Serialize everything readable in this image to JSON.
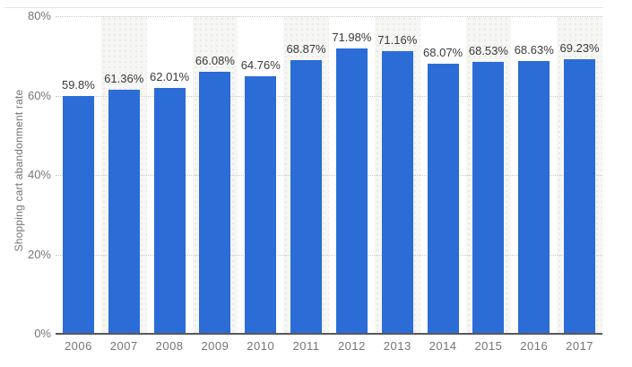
{
  "chart_data": {
    "type": "bar",
    "title": "",
    "categories": [
      "2006",
      "2007",
      "2008",
      "2009",
      "2010",
      "2011",
      "2012",
      "2013",
      "2014",
      "2015",
      "2016",
      "2017"
    ],
    "values": [
      59.8,
      61.36,
      62.01,
      66.08,
      64.76,
      68.87,
      71.98,
      71.16,
      68.07,
      68.53,
      68.63,
      69.23
    ],
    "value_labels": [
      "59.8%",
      "61.36%",
      "62.01%",
      "66.08%",
      "64.76%",
      "68.87%",
      "71.98%",
      "71.16%",
      "68.07%",
      "68.53%",
      "68.63%",
      "69.23%"
    ],
    "xlabel": "",
    "ylabel": "Shopping cart abandonment rate",
    "ylim": [
      0,
      80
    ],
    "yticks": [
      "0%",
      "20%",
      "40%",
      "60%",
      "80%"
    ],
    "ytick_values": [
      0,
      20,
      40,
      60,
      80
    ],
    "grid": "horizontal dotted gridlines",
    "legend": "none",
    "colors": {
      "bar": "#2b6cd6",
      "stripe_background": "#f6f6f4",
      "gridline": "#c9c9c9",
      "axis_line": "#57585a",
      "tick_text": "#757575",
      "value_label_text": "#3a3a3a"
    },
    "background_style": "alternating category columns shaded with light dotted pattern (2007, 2009, 2011, 2013, 2015, 2017)"
  }
}
